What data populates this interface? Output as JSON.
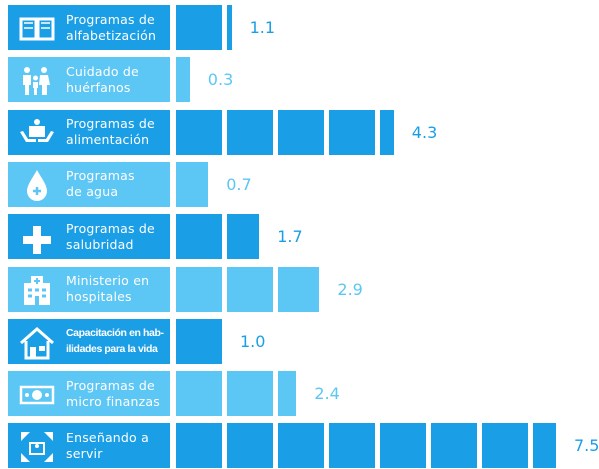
{
  "chart_data": {
    "type": "bar",
    "categories": [
      "Programas de\nalfabetización",
      "Cuidado de\nhuérfanos",
      "Programas de\nalimentación",
      "Programas\nde agua",
      "Programas de\nsalubridad",
      "Ministerio en\nhospitales",
      "Capacitación en hab-\nilidades para la vida",
      "Programas de\nmicro finanzas",
      "Enseñando a\nservir"
    ],
    "values": [
      1.1,
      0.3,
      4.3,
      0.7,
      1.7,
      2.9,
      1.0,
      2.4,
      7.5
    ],
    "value_labels": [
      "1.1",
      "0.3",
      "4.3",
      "0.7",
      "1.7",
      "2.9",
      "1.0",
      "2.4",
      "7.5"
    ],
    "colors": [
      "#1a9fe6",
      "#5cc6f4",
      "#1a9fe6",
      "#5cc6f4",
      "#1a9fe6",
      "#5cc6f4",
      "#1a9fe6",
      "#5cc6f4",
      "#1a9fe6"
    ]
  }
}
